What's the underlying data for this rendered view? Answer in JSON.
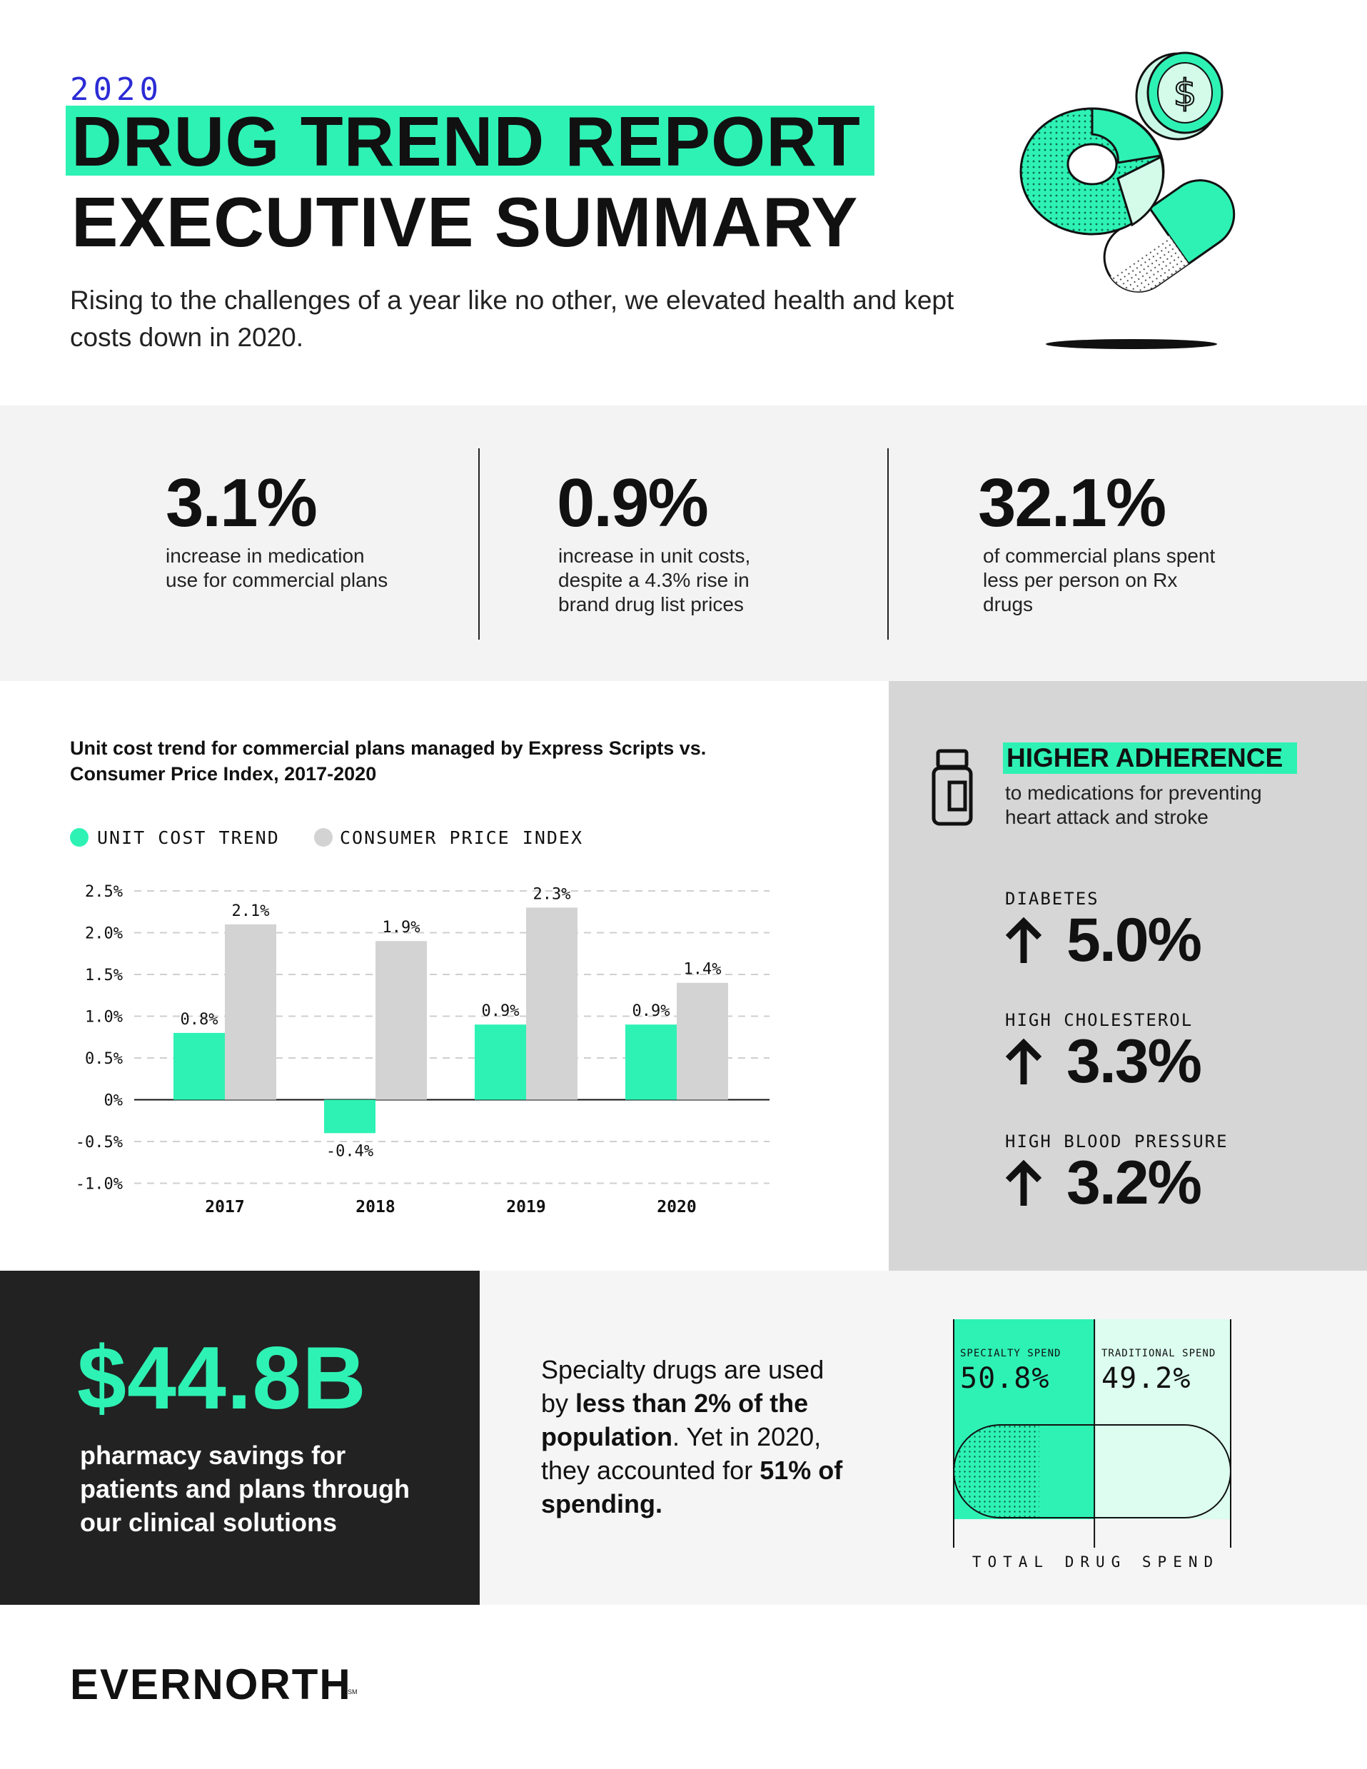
{
  "header": {
    "year": "2020",
    "title_line1": "DRUG TREND REPORT",
    "title_line2": "EXECUTIVE SUMMARY",
    "intro": "Rising to the challenges of a year like no other, we elevated health and kept costs down in 2020."
  },
  "stats": [
    {
      "value": "3.1%",
      "text": "increase in medication use for commercial plans"
    },
    {
      "value": "0.9%",
      "text": "increase in unit costs, despite a 4.3% rise in brand drug list prices"
    },
    {
      "value": "32.1%",
      "text": "of commercial plans spent less per person on Rx drugs"
    }
  ],
  "chart_data": {
    "type": "bar",
    "title": "Unit cost trend for commercial plans managed by Express Scripts vs. Consumer Price Index, 2017-2020",
    "categories": [
      "2017",
      "2018",
      "2019",
      "2020"
    ],
    "series": [
      {
        "name": "UNIT COST TREND",
        "values": [
          0.8,
          -0.4,
          0.9,
          0.9
        ],
        "labels": [
          "0.8%",
          "-0.4%",
          "0.9%",
          "0.9%"
        ],
        "color": "#2ef2b4"
      },
      {
        "name": "CONSUMER PRICE INDEX",
        "values": [
          2.1,
          1.9,
          2.3,
          1.4
        ],
        "labels": [
          "2.1%",
          "1.9%",
          "2.3%",
          "1.4%"
        ],
        "color": "#d3d3d3"
      }
    ],
    "y_ticks": [
      2.5,
      2.0,
      1.5,
      1.0,
      0.5,
      0,
      -0.5,
      -1.0
    ],
    "y_tick_labels": [
      "2.5%",
      "2.0%",
      "1.5%",
      "1.0%",
      "0.5%",
      "0%",
      "-0.5%",
      "-1.0%"
    ],
    "ylim": [
      -1.0,
      2.5
    ],
    "grid": true,
    "legend_position": "top-left",
    "xlabel": "",
    "ylabel": ""
  },
  "adherence": {
    "title": "HIGHER ADHERENCE",
    "subtitle": "to medications for preventing heart attack and stroke",
    "icon": "pill-bottle-icon",
    "conditions": [
      {
        "label": "DIABETES",
        "value": "5.0%"
      },
      {
        "label": "HIGH CHOLESTEROL",
        "value": "3.3%"
      },
      {
        "label": "HIGH BLOOD PRESSURE",
        "value": "3.2%"
      }
    ]
  },
  "savings": {
    "value": "$44.8B",
    "text": "pharmacy savings for patients and plans through our clinical solutions"
  },
  "specialty": {
    "text_1": "Specialty drugs are used by ",
    "bold_1": "less than 2% of the population",
    "text_2": ". Yet in 2020, they accounted for ",
    "bold_2": "51% of spending.",
    "specialty_label": "SPECIALTY SPEND",
    "specialty_value": "50.8%",
    "specialty_fraction": 0.508,
    "traditional_label": "TRADITIONAL SPEND",
    "traditional_value": "49.2%",
    "total_label": "TOTAL DRUG SPEND"
  },
  "footer": {
    "logo": "EVERNORTH",
    "logo_mark": "SM"
  },
  "colors": {
    "accent": "#2ef2b4",
    "grey": "#d3d3d3",
    "dark": "#222222",
    "year_blue": "#2b2bd6"
  }
}
